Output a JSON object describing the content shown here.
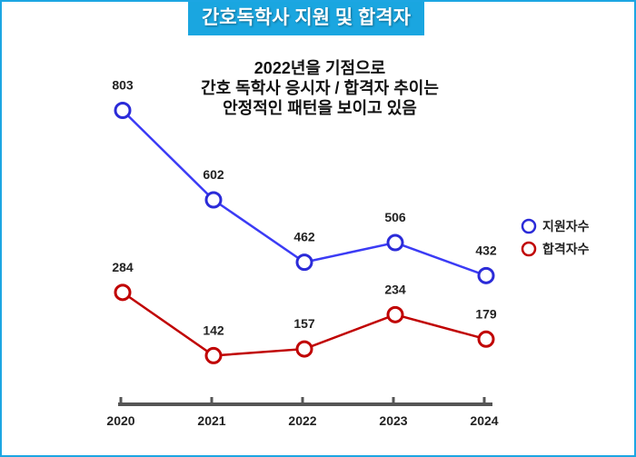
{
  "chart_data": {
    "type": "line",
    "title": "간호독학사 지원 및 합격자",
    "annotation": [
      "2022년을 기점으로",
      "간호 독학사 응시자 / 합격자 추이는",
      "안정적인 패턴을 보이고 있음"
    ],
    "categories": [
      "2020",
      "2021",
      "2022",
      "2023",
      "2024"
    ],
    "series": [
      {
        "name": "지원자수",
        "values": [
          803,
          602,
          462,
          506,
          432
        ],
        "color": "#3b3bf5",
        "marker": "#2b2bd8"
      },
      {
        "name": "합격자수",
        "values": [
          284,
          142,
          157,
          234,
          179
        ],
        "color": "#c00000",
        "marker": "#c00000"
      }
    ],
    "legend": "right",
    "grid": false
  }
}
